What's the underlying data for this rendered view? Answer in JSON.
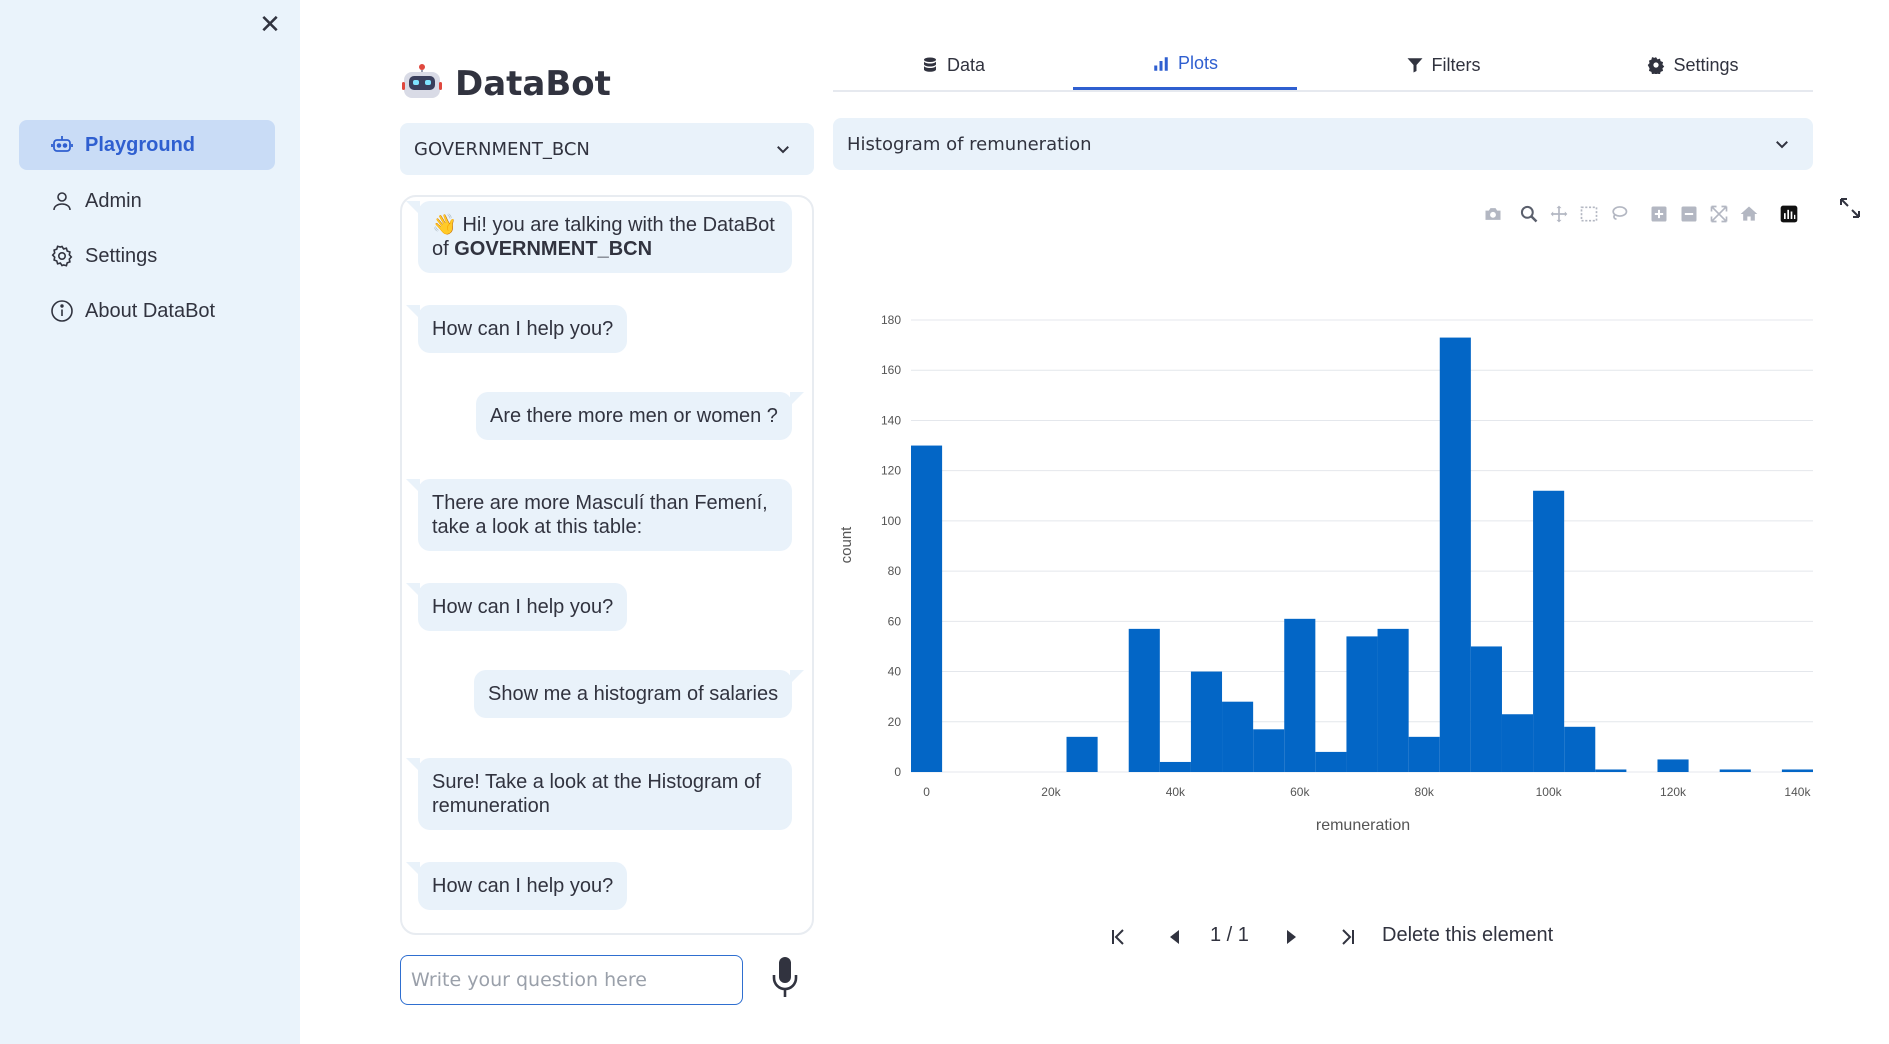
{
  "sidebar": {
    "close_label": "✕",
    "items": [
      {
        "label": "Playground",
        "icon": "robot-icon",
        "active": true
      },
      {
        "label": "Admin",
        "icon": "person-icon",
        "active": false
      },
      {
        "label": "Settings",
        "icon": "gear-icon",
        "active": false
      },
      {
        "label": "About DataBot",
        "icon": "info-icon",
        "active": false
      }
    ]
  },
  "header": {
    "title": "DataBot",
    "logo": "robot-logo"
  },
  "dataset_select": {
    "value": "GOVERNMENT_BCN"
  },
  "chat": {
    "messages": [
      {
        "role": "bot",
        "prefix": "👋 Hi! you are talking with the DataBot of ",
        "bold": "GOVERNMENT_BCN"
      },
      {
        "role": "bot",
        "text": "How can I help you?"
      },
      {
        "role": "user",
        "text": "Are there more men or women ?"
      },
      {
        "role": "bot",
        "text": "There are more Masculí than Femení, take a look at this table:"
      },
      {
        "role": "bot",
        "text": "How can I help you?"
      },
      {
        "role": "user",
        "text": "Show me a histogram of salaries"
      },
      {
        "role": "bot",
        "text": "Sure! Take a look at the Histogram of remuneration"
      },
      {
        "role": "bot",
        "text": "How can I help you?"
      }
    ],
    "input_placeholder": "Write your question here"
  },
  "tabs": [
    {
      "label": "Data",
      "icon": "database-icon",
      "active": false
    },
    {
      "label": "Plots",
      "icon": "bar-chart-icon",
      "active": true
    },
    {
      "label": "Filters",
      "icon": "filter-icon",
      "active": false
    },
    {
      "label": "Settings",
      "icon": "gear-icon",
      "active": false
    }
  ],
  "plot_select": {
    "value": "Histogram of remuneration"
  },
  "chart_data": {
    "type": "bar",
    "title": "Histogram of remuneration",
    "xlabel": "remuneration",
    "ylabel": "count",
    "bin_width": 5000,
    "bin_starts": [
      0,
      5000,
      10000,
      15000,
      20000,
      25000,
      30000,
      35000,
      40000,
      45000,
      50000,
      55000,
      60000,
      65000,
      70000,
      75000,
      80000,
      85000,
      90000,
      95000,
      100000,
      105000,
      110000,
      115000,
      120000,
      125000,
      130000,
      135000,
      140000
    ],
    "values": [
      130,
      0,
      0,
      0,
      0,
      14,
      0,
      57,
      4,
      40,
      28,
      17,
      61,
      8,
      54,
      57,
      14,
      173,
      50,
      23,
      112,
      18,
      1,
      0,
      5,
      0,
      1,
      0,
      1
    ],
    "xlim": [
      -2500,
      142500
    ],
    "ylim": [
      0,
      180
    ],
    "x_ticks": [
      0,
      20000,
      40000,
      60000,
      80000,
      100000,
      120000,
      140000
    ],
    "x_tick_labels": [
      "0",
      "20k",
      "40k",
      "60k",
      "80k",
      "100k",
      "120k",
      "140k"
    ],
    "y_ticks": [
      0,
      20,
      40,
      60,
      80,
      100,
      120,
      140,
      160,
      180
    ],
    "y_tick_labels": [
      "0",
      "20",
      "40",
      "60",
      "80",
      "100",
      "120",
      "140",
      "160",
      "180"
    ],
    "bar_color": "#0366c6",
    "grid": true
  },
  "modebar": [
    "camera-icon",
    "zoom-icon",
    "pan-icon",
    "box-select-icon",
    "lasso-icon",
    "zoom-in-icon",
    "zoom-out-icon",
    "autoscale-icon",
    "reset-axes-icon",
    "plotly-logo-icon"
  ],
  "pager": {
    "page": "1 / 1",
    "delete_label": "Delete this element"
  },
  "colors": {
    "accent": "#2f5fd0",
    "sidebar_bg": "#eaf3fb",
    "bubble_bg": "#e9f2fa",
    "bar": "#0366c6"
  }
}
